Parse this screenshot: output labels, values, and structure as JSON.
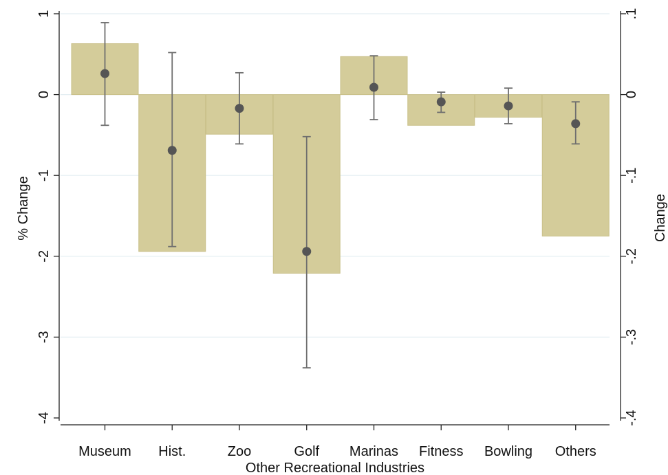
{
  "chart_data": {
    "type": "bar",
    "xlabel": "Other Recreational Industries",
    "ylabel_left": "% Change",
    "ylabel_right": "Change",
    "categories": [
      "Museum",
      "Hist.",
      "Zoo",
      "Golf",
      "Marinas",
      "Fitness",
      "Bowling",
      "Others"
    ],
    "bar_axis": "right",
    "bar_values": [
      0.063,
      -0.194,
      -0.049,
      -0.221,
      0.047,
      -0.038,
      -0.028,
      -0.175
    ],
    "point_axis": "left",
    "point_values": [
      0.26,
      -0.69,
      -0.17,
      -1.94,
      0.09,
      -0.09,
      -0.14,
      -0.36
    ],
    "ci_low": [
      -0.38,
      -1.88,
      -0.61,
      -3.38,
      -0.31,
      -0.22,
      -0.36,
      -0.61
    ],
    "ci_high": [
      0.89,
      0.52,
      0.27,
      -0.52,
      0.48,
      0.03,
      0.08,
      -0.09
    ],
    "ylim_left": [
      -4,
      1
    ],
    "ylim_right": [
      -0.4,
      0.1
    ],
    "yticks_left": [
      1,
      0,
      -1,
      -2,
      -3,
      -4
    ],
    "yticks_left_labels": [
      "1",
      "0",
      "-1",
      "-2",
      "-3",
      "-4"
    ],
    "yticks_right": [
      0.1,
      0,
      -0.1,
      -0.2,
      -0.3,
      -0.4
    ],
    "yticks_right_labels": [
      ".1",
      "0",
      "-.1",
      "-.2",
      "-.3",
      "-.4"
    ],
    "grid": true,
    "colors": {
      "bar": "#d4cc9a",
      "bar_stroke": "#c9c089",
      "point": "#555555",
      "errorbar": "#6e6e6e",
      "grid": "#e3eef2",
      "axis": "#222222"
    }
  }
}
